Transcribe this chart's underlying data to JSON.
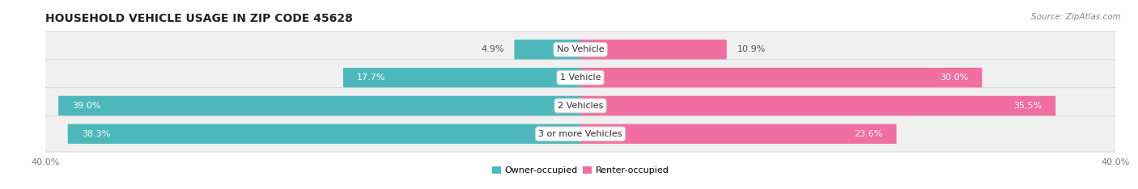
{
  "title": "HOUSEHOLD VEHICLE USAGE IN ZIP CODE 45628",
  "source": "Source: ZipAtlas.com",
  "categories": [
    "No Vehicle",
    "1 Vehicle",
    "2 Vehicles",
    "3 or more Vehicles"
  ],
  "owner_values": [
    4.9,
    17.7,
    39.0,
    38.3
  ],
  "renter_values": [
    10.9,
    30.0,
    35.5,
    23.6
  ],
  "owner_color": "#4db8bc",
  "renter_color": "#f06fa0",
  "owner_color_light": "#7dcdd0",
  "renter_color_light": "#f7aac8",
  "row_bg_color": "#f0f0f0",
  "row_border_color": "#d8d8d8",
  "xlim": 40.0,
  "bar_height": 0.62,
  "title_fontsize": 10,
  "value_fontsize": 8,
  "cat_fontsize": 8,
  "axis_fontsize": 8,
  "legend_fontsize": 8
}
